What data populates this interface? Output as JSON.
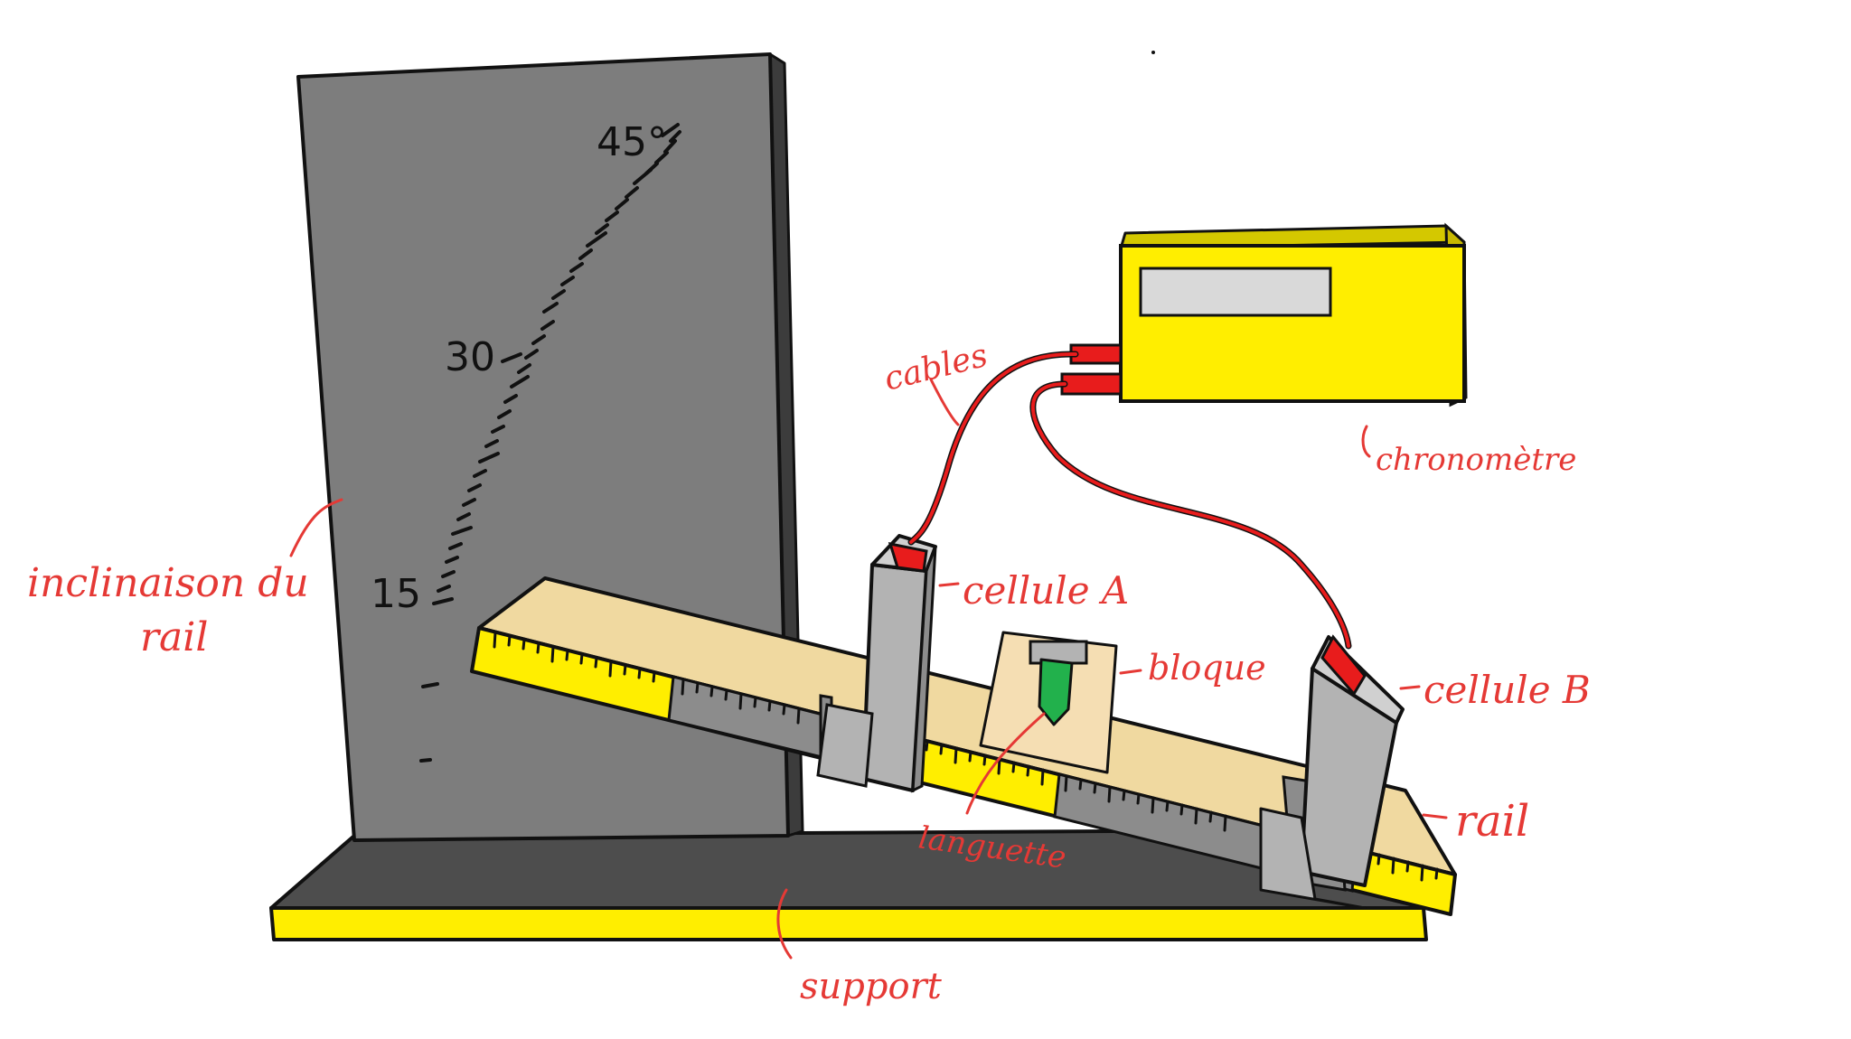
{
  "labels": {
    "inclinaison_line1": "inclinaison du",
    "inclinaison_line2": "rail",
    "cables": "cables",
    "chronometre": "chronomètre",
    "cellule_a": "cellule A",
    "cellule_b": "cellule B",
    "bloque": "bloque",
    "languette": "languette",
    "rail": "rail",
    "support": "support"
  },
  "scale": {
    "mark_15": "15",
    "mark_30": "30",
    "mark_45": "45°"
  },
  "colors": {
    "annotation": "#e53935",
    "board": "#7d7d7d",
    "base_top": "#4d4d4d",
    "base_edge": "#ffee00",
    "rail_top": "#f0d9a0",
    "ruler_yellow": "#ffee00",
    "ruler_grey": "#8c8c8c",
    "chronometer": "#ffee00",
    "display": "#d9d9d9",
    "cell": "#b3b3b3",
    "languette": "#22b14c",
    "block": "#f5deb3",
    "cable": "#e81c1c"
  }
}
